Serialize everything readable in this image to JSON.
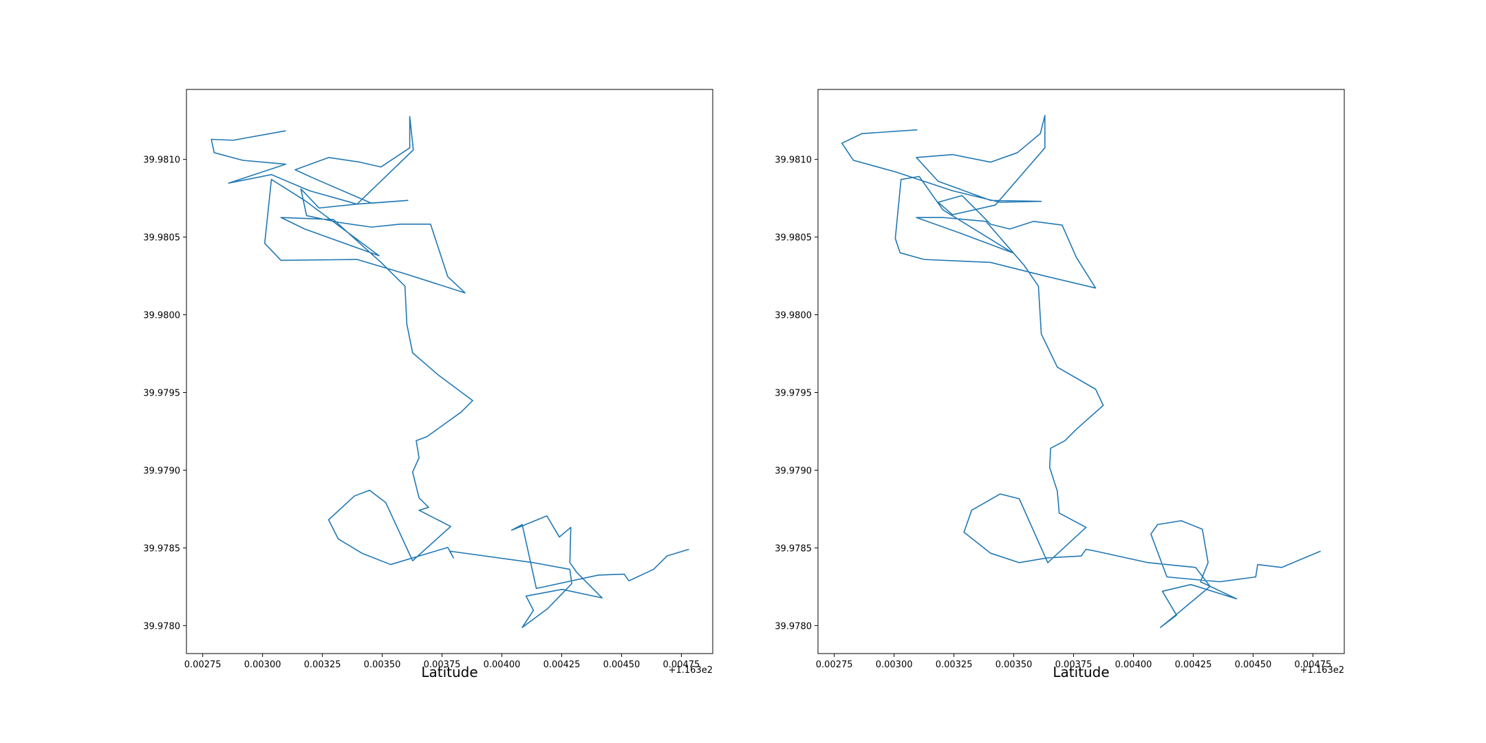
{
  "chart_data": [
    {
      "type": "line",
      "x_label": "Latitude",
      "offset_text": "+1.163e2",
      "color": "#1f77b4",
      "xlim": [
        0.002682,
        0.004881
      ],
      "ylim": [
        39.97782,
        39.98145
      ],
      "xticks": [
        0.00275,
        {
          "value": 0.003,
          "label": "0.00300"
        },
        0.00325,
        {
          "value": 0.0035,
          "label": "0.00350"
        },
        0.00375,
        {
          "value": 0.004,
          "label": "0.00400"
        },
        0.00425,
        {
          "value": 0.0045,
          "label": "0.00450"
        },
        0.00475
      ],
      "yticks": [
        {
          "value": 39.978,
          "label": "39.9780"
        },
        39.9785,
        {
          "value": 39.979,
          "label": "39.9790"
        },
        39.9795,
        {
          "value": 39.98,
          "label": "39.9800"
        },
        39.9805,
        {
          "value": 39.981,
          "label": "39.9810"
        }
      ],
      "x": [
        0.003097,
        0.002877,
        0.002786,
        0.002798,
        0.002917,
        0.003097,
        0.002858,
        0.003037,
        0.003196,
        0.003395,
        0.003607,
        0.003455,
        0.003216,
        0.003136,
        0.003276,
        0.003407,
        0.003495,
        0.003615,
        0.003615,
        0.00363,
        0.003395,
        0.003236,
        0.00316,
        0.003184,
        0.003316,
        0.003455,
        0.003575,
        0.003702,
        0.003774,
        0.003846,
        0.003595,
        0.003395,
        0.003077,
        0.003009,
        0.003037,
        0.003176,
        0.003487,
        0.003176,
        0.003077,
        0.003296,
        0.003495,
        0.003595,
        0.003603,
        0.003627,
        0.003734,
        0.003878,
        0.00383,
        0.003686,
        0.003642,
        0.003654,
        0.003627,
        0.003654,
        0.003694,
        0.003654,
        0.003786,
        0.003627,
        0.003515,
        0.003447,
        0.003384,
        0.003276,
        0.003316,
        0.003415,
        0.003535,
        0.003774,
        0.003798,
        0.003782,
        0.004132,
        0.004284,
        0.004292,
        0.004192,
        0.004085,
        0.004132,
        0.004101,
        0.004252,
        0.004419,
        0.004312,
        0.004284,
        0.004288,
        0.00424,
        0.004188,
        0.004041,
        0.004085,
        0.004144,
        0.004403,
        0.004511,
        0.004531,
        0.004634,
        0.00469,
        0.004782
      ],
      "values": [
        39.981184,
        39.981123,
        39.981129,
        39.981043,
        39.980994,
        39.980969,
        39.980847,
        39.980902,
        39.980798,
        39.980712,
        39.980736,
        39.980718,
        39.980877,
        39.980933,
        39.981012,
        39.980982,
        39.980951,
        39.981074,
        39.981276,
        39.981061,
        39.980712,
        39.980687,
        39.98081,
        39.980638,
        39.980595,
        39.980564,
        39.980583,
        39.980583,
        39.980245,
        39.980141,
        39.980264,
        39.980356,
        39.98035,
        39.98046,
        39.980871,
        39.980736,
        39.98038,
        39.980552,
        39.980626,
        39.980613,
        39.980337,
        39.980184,
        39.979939,
        39.979755,
        39.979613,
        39.979448,
        39.979374,
        39.979215,
        39.97919,
        39.97908,
        39.978988,
        39.978822,
        39.978761,
        39.978742,
        39.978638,
        39.978417,
        39.978791,
        39.978871,
        39.978834,
        39.978681,
        39.978558,
        39.978466,
        39.978393,
        39.978503,
        39.978436,
        39.978479,
        39.978405,
        39.978362,
        39.97827,
        39.97811,
        39.977988,
        39.978098,
        39.97819,
        39.978233,
        39.978178,
        39.978344,
        39.978405,
        39.978632,
        39.97857,
        39.978706,
        39.978614,
        39.97865,
        39.978239,
        39.978325,
        39.978331,
        39.978288,
        39.978362,
        39.978448,
        39.978491
      ]
    },
    {
      "type": "line",
      "x_label": "Latitude",
      "offset_text": "+1.163e2",
      "color": "#1f77b4",
      "xlim": [
        0.002682,
        0.004881
      ],
      "ylim": [
        39.97782,
        39.98145
      ],
      "xticks": [
        0.00275,
        {
          "value": 0.003,
          "label": "0.00300"
        },
        0.00325,
        {
          "value": 0.0035,
          "label": "0.00350"
        },
        0.00375,
        {
          "value": 0.004,
          "label": "0.00400"
        },
        0.00425,
        {
          "value": 0.0045,
          "label": "0.00450"
        },
        0.00475
      ],
      "yticks": [
        {
          "value": 39.978,
          "label": "39.9780"
        },
        39.9785,
        {
          "value": 39.979,
          "label": "39.9790"
        },
        39.9795,
        {
          "value": 39.98,
          "label": "39.9800"
        },
        39.9805,
        {
          "value": 39.981,
          "label": "39.9810"
        }
      ],
      "x": [
        0.003097,
        0.002866,
        0.002782,
        0.00283,
        0.003005,
        0.003244,
        0.003443,
        0.003615,
        0.003403,
        0.003184,
        0.003093,
        0.003244,
        0.003403,
        0.003515,
        0.003611,
        0.00363,
        0.00363,
        0.003423,
        0.003244,
        0.003184,
        0.003284,
        0.003403,
        0.003483,
        0.003583,
        0.003702,
        0.003762,
        0.003842,
        0.003642,
        0.003403,
        0.003125,
        0.003025,
        0.003005,
        0.003029,
        0.003105,
        0.003204,
        0.003495,
        0.003284,
        0.003093,
        0.003204,
        0.003384,
        0.003543,
        0.003603,
        0.003615,
        0.003682,
        0.003842,
        0.003874,
        0.003762,
        0.003714,
        0.003654,
        0.00365,
        0.003682,
        0.00369,
        0.003802,
        0.003642,
        0.003523,
        0.003443,
        0.003324,
        0.003292,
        0.003403,
        0.003523,
        0.003642,
        0.003782,
        0.003802,
        0.003842,
        0.004061,
        0.00426,
        0.00432,
        0.0042,
        0.004113,
        0.00418,
        0.004121,
        0.00424,
        0.004431,
        0.00428,
        0.004312,
        0.004288,
        0.0042,
        0.004101,
        0.004073,
        0.00414,
        0.00436,
        0.004511,
        0.004519,
        0.004619,
        0.004782
      ],
      "values": [
        39.98119,
        39.981166,
        39.981104,
        39.980994,
        39.98092,
        39.980798,
        39.980724,
        39.98073,
        39.980736,
        39.980859,
        39.981012,
        39.981031,
        39.980982,
        39.981043,
        39.981166,
        39.981282,
        39.981074,
        39.980706,
        39.980644,
        39.980724,
        39.980767,
        39.980583,
        39.980552,
        39.980601,
        39.980577,
        39.980368,
        39.980172,
        39.980245,
        39.980337,
        39.980356,
        39.980399,
        39.980491,
        39.980871,
        39.98089,
        39.980675,
        39.980399,
        39.980521,
        39.980626,
        39.980626,
        39.980601,
        39.980319,
        39.980184,
        39.979877,
        39.979663,
        39.979521,
        39.979417,
        39.979264,
        39.97919,
        39.979141,
        39.979018,
        39.978865,
        39.978724,
        39.978632,
        39.978405,
        39.978816,
        39.978847,
        39.978742,
        39.978601,
        39.978466,
        39.978405,
        39.978436,
        39.978448,
        39.978491,
        39.978479,
        39.978405,
        39.978374,
        39.978252,
        39.978098,
        39.977988,
        39.978067,
        39.978221,
        39.978264,
        39.978172,
        39.978282,
        39.978405,
        39.97862,
        39.978675,
        39.97865,
        39.978589,
        39.978313,
        39.978282,
        39.978313,
        39.978393,
        39.978374,
        39.978479
      ]
    }
  ]
}
